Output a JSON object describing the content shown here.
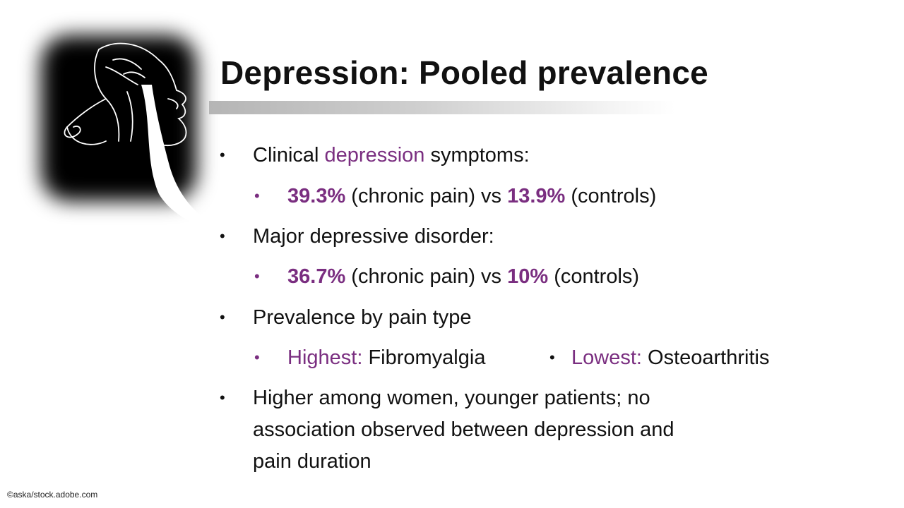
{
  "slide": {
    "title": "Depression: Pooled prevalence",
    "credit": "©aska/stock.adobe.com"
  },
  "bullets": {
    "b1": {
      "prefix": "Clinical ",
      "accent": "depression",
      "suffix": " symptoms:"
    },
    "b1_sub": {
      "val1": "39.3%",
      "mid1": " (chronic pain) vs ",
      "val2": "13.9%",
      "end": " (controls)"
    },
    "b2": {
      "text": "Major depressive disorder:"
    },
    "b2_sub": {
      "val1": "36.7%",
      "mid1": " (chronic pain) vs ",
      "val2": "10%",
      "end": " (controls)"
    },
    "b3": {
      "text": "Prevalence by pain type"
    },
    "b3_sub": {
      "highest_label": "Highest:",
      "highest_value": " Fibromyalgia",
      "lowest_label": "Lowest:",
      "lowest_value": " Osteoarthritis"
    },
    "b4": {
      "line1": "Higher among women, younger patients; no",
      "line2": "association observed between depression and",
      "line3": "pain duration"
    }
  },
  "colors": {
    "accent": "#7a2e80",
    "text": "#111111"
  },
  "icons": {
    "bullet_main": "•",
    "bullet_sub": "•"
  },
  "art": {
    "name": "line-drawn-face-silhouette"
  }
}
